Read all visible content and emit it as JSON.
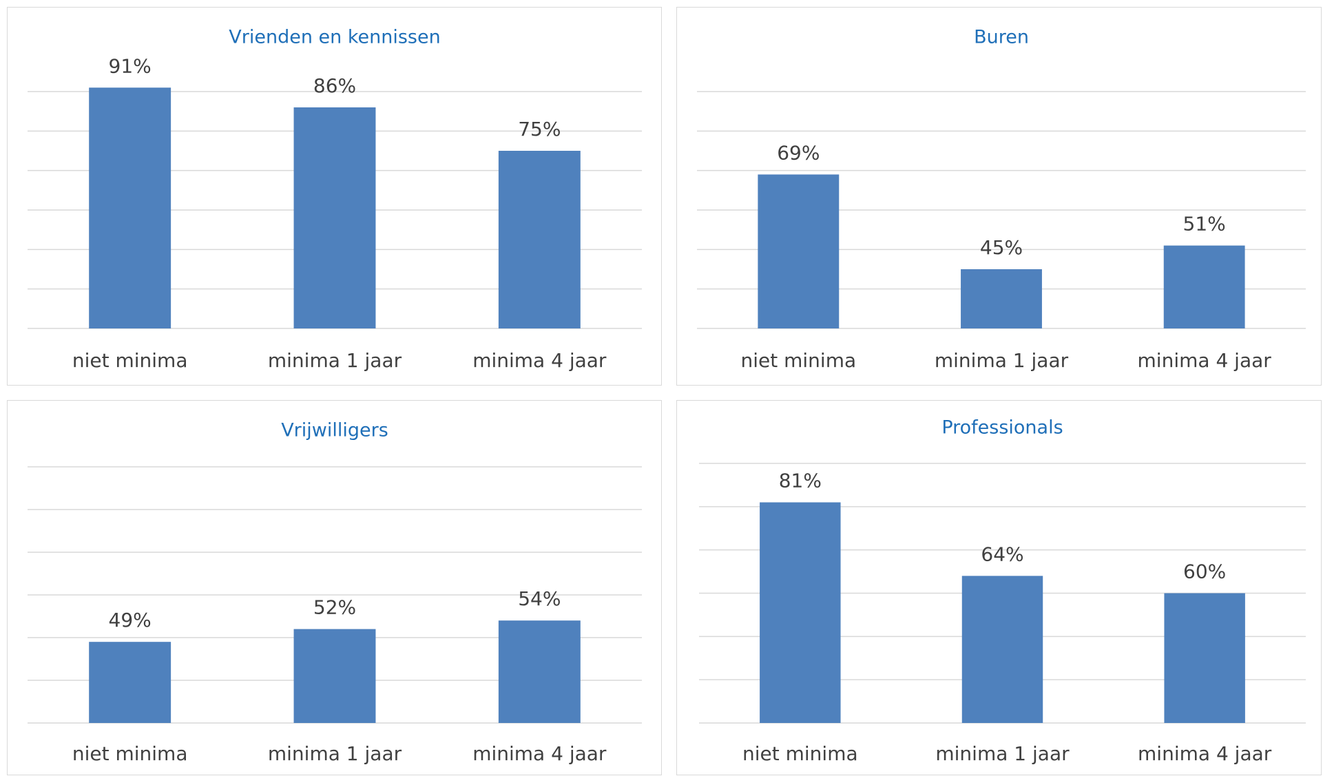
{
  "chart_data": [
    {
      "type": "bar",
      "title": "Vrienden en kennissen",
      "categories": [
        "niet minima",
        "minima 1 jaar",
        "minima 4 jaar"
      ],
      "values": [
        91,
        86,
        75
      ],
      "value_labels": [
        "91%",
        "86%",
        "75%"
      ],
      "color": "#4f81bd",
      "ylim": [
        30,
        90
      ],
      "yticks": [
        30,
        40,
        50,
        60,
        70,
        80,
        90
      ],
      "grid": true
    },
    {
      "type": "bar",
      "title": "Buren",
      "categories": [
        "niet minima",
        "minima 1 jaar",
        "minima 4 jaar"
      ],
      "values": [
        69,
        45,
        51
      ],
      "value_labels": [
        "69%",
        "45%",
        "51%"
      ],
      "color": "#4f81bd",
      "ylim": [
        30,
        90
      ],
      "yticks": [
        30,
        40,
        50,
        60,
        70,
        80,
        90
      ],
      "grid": true
    },
    {
      "type": "bar",
      "title": "Vrijwilligers",
      "categories": [
        "niet minima",
        "minima 1 jaar",
        "minima 4 jaar"
      ],
      "values": [
        49,
        52,
        54
      ],
      "value_labels": [
        "49%",
        "52%",
        "54%"
      ],
      "color": "#4f81bd",
      "ylim": [
        30,
        90
      ],
      "yticks": [
        30,
        40,
        50,
        60,
        70,
        80,
        90
      ],
      "grid": true
    },
    {
      "type": "bar",
      "title": "Professionals",
      "categories": [
        "niet minima",
        "minima 1 jaar",
        "minima 4 jaar"
      ],
      "values": [
        81,
        64,
        60
      ],
      "value_labels": [
        "81%",
        "64%",
        "60%"
      ],
      "color": "#4f81bd",
      "ylim": [
        30,
        90
      ],
      "yticks": [
        30,
        40,
        50,
        60,
        70,
        80,
        90
      ],
      "grid": true
    }
  ]
}
